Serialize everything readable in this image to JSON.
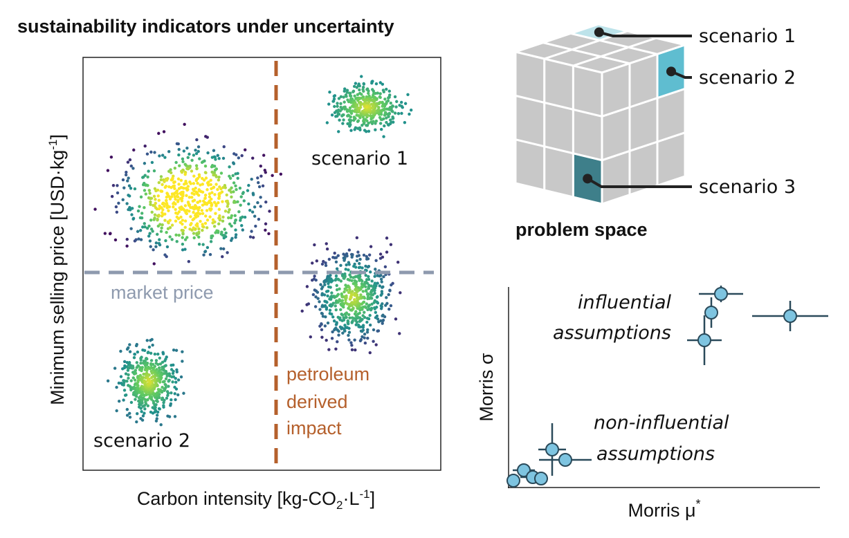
{
  "title": "sustainability indicators under uncertainty",
  "scatter_panel": {
    "x_label": [
      "Carbon intensity [kg-CO",
      "2",
      "·L",
      "-1",
      "]"
    ],
    "y_label": [
      "Minimum selling price [USD·kg",
      "-1",
      "]"
    ],
    "market_price_label": "market price",
    "impact_label": [
      "petroleum",
      "derived",
      "impact"
    ],
    "clusters": [
      "scenario 1",
      "scenario 2"
    ]
  },
  "problem_space": {
    "title": "problem space",
    "callouts": [
      "scenario 1",
      "scenario 2",
      "scenario 3"
    ]
  },
  "morris_panel": {
    "x_label": [
      "Morris μ",
      "*"
    ],
    "y_label": "Morris σ",
    "influential": [
      "influential",
      "assumptions"
    ],
    "non_influential": [
      "non-influential",
      "assumptions"
    ]
  }
}
